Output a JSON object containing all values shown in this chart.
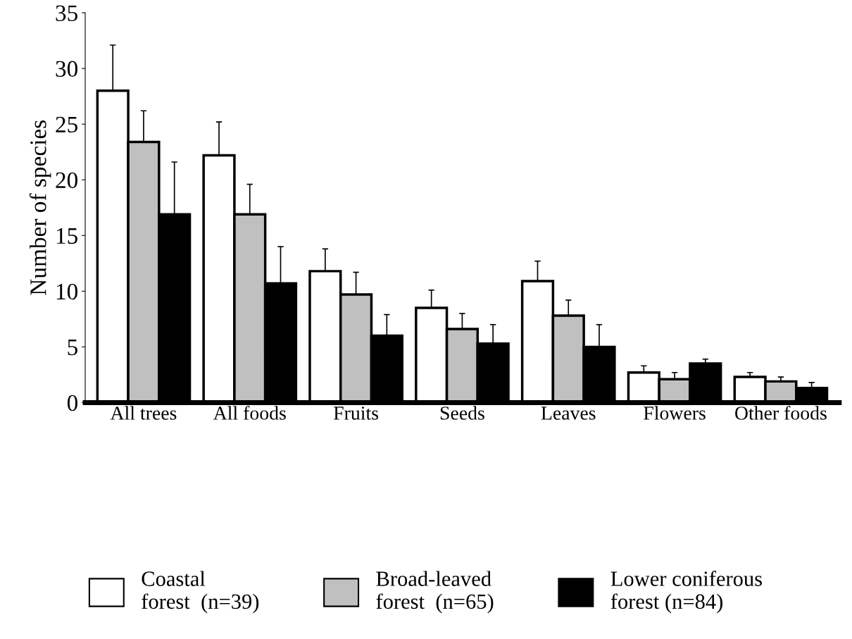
{
  "chart_data": {
    "type": "bar",
    "ylabel": "Number of species",
    "categories": [
      "All trees",
      "All foods",
      "Fruits",
      "Seeds",
      "Leaves",
      "Flowers",
      "Other foods"
    ],
    "ylim": [
      0,
      35
    ],
    "yticks": [
      0,
      5,
      10,
      15,
      20,
      25,
      30,
      35
    ],
    "grid": false,
    "legend": "bottom",
    "series": [
      {
        "name": "Coastal\nforest  (n=39)",
        "color": "#ffffff",
        "values": [
          28,
          22.2,
          11.8,
          8.5,
          10.9,
          2.7,
          2.3
        ],
        "errors": [
          [
            28,
            32.1
          ],
          [
            22.2,
            25.2
          ],
          [
            11.8,
            13.8
          ],
          [
            8.5,
            10.1
          ],
          [
            10.9,
            12.7
          ],
          [
            2.7,
            3.3
          ],
          [
            2.3,
            2.7
          ]
        ]
      },
      {
        "name": "Broad-leaved\nforest  (n=65)",
        "color": "#c0c0c0",
        "values": [
          23.4,
          16.9,
          9.7,
          6.6,
          7.8,
          2.1,
          1.9
        ],
        "errors": [
          [
            23.4,
            26.2
          ],
          [
            16.9,
            19.6
          ],
          [
            9.7,
            11.7
          ],
          [
            6.6,
            8
          ],
          [
            7.8,
            9.2
          ],
          [
            2.1,
            2.7
          ],
          [
            1.9,
            2.3
          ]
        ]
      },
      {
        "name": "Lower coniferous\nforest (n=84)",
        "color": "#000000",
        "values": [
          16.9,
          10.7,
          6,
          5.3,
          5,
          3.5,
          1.3
        ],
        "errors": [
          [
            16.9,
            21.6
          ],
          [
            10.7,
            14
          ],
          [
            6,
            7.9
          ],
          [
            5.3,
            7
          ],
          [
            5,
            7
          ],
          [
            3.5,
            3.9
          ],
          [
            1.3,
            1.8
          ]
        ]
      }
    ]
  }
}
